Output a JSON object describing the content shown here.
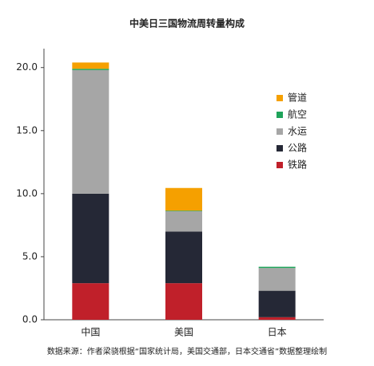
{
  "chart_data": {
    "type": "stacked-bar",
    "title": "中美日三国物流周转量构成",
    "categories": [
      "中国",
      "美国",
      "日本"
    ],
    "series": [
      {
        "name": "铁路",
        "color": "#c0202a",
        "values": [
          2.9,
          2.9,
          0.2
        ]
      },
      {
        "name": "公路",
        "color": "#252836",
        "values": [
          7.1,
          4.1,
          2.1
        ]
      },
      {
        "name": "水运",
        "color": "#a6a6a6",
        "values": [
          9.8,
          1.6,
          1.8
        ]
      },
      {
        "name": "航空",
        "color": "#1fa35a",
        "values": [
          0.1,
          0.05,
          0.1
        ]
      },
      {
        "name": "管道",
        "color": "#f5a000",
        "values": [
          0.5,
          1.8,
          0
        ]
      }
    ],
    "ylim": [
      0,
      21.5
    ],
    "yticks": [
      {
        "value": 0,
        "label": "0.0"
      },
      {
        "value": 5,
        "label": "5.0"
      },
      {
        "value": 10,
        "label": "10.0"
      },
      {
        "value": 15,
        "label": "15.0"
      },
      {
        "value": 20,
        "label": "20.0"
      }
    ],
    "source": "数据来源：作者梁骁根据“国家统计局，美国交通部，日本交通省”数据整理绘制"
  }
}
